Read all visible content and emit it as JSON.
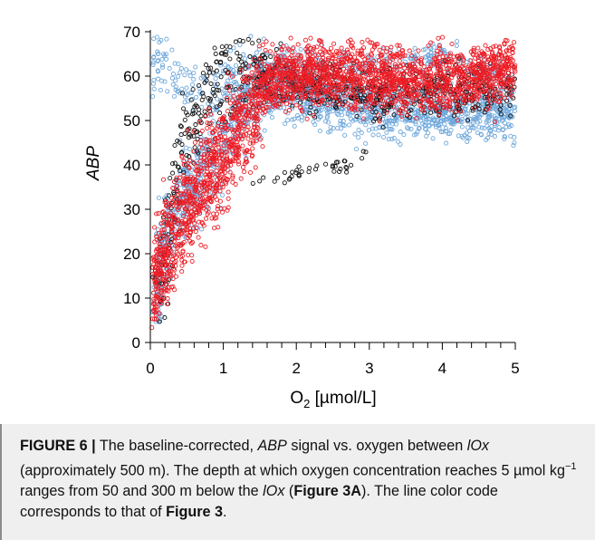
{
  "chart_data": {
    "type": "scatter",
    "xlabel_main": "O",
    "xlabel_sub": "2",
    "xlabel_unit": " [µmol/L]",
    "ylabel": "ABP",
    "xlim": [
      0,
      5
    ],
    "ylim": [
      0,
      70
    ],
    "x_ticks": [
      0,
      1,
      2,
      3,
      4,
      5
    ],
    "y_ticks": [
      0,
      10,
      20,
      30,
      40,
      50,
      60,
      70
    ],
    "grid": false,
    "colors": {
      "blue": "#6fa8dc",
      "black": "#111111",
      "red": "#ee1c24"
    },
    "series": [
      {
        "color_key": "blue",
        "trend": [
          [
            0.05,
            6
          ],
          [
            0.1,
            14
          ],
          [
            0.2,
            22
          ],
          [
            0.35,
            28
          ],
          [
            0.5,
            33
          ],
          [
            0.7,
            38
          ],
          [
            0.9,
            43
          ],
          [
            1.1,
            49
          ],
          [
            1.3,
            54
          ],
          [
            1.6,
            57
          ],
          [
            2.0,
            57
          ],
          [
            2.5,
            54
          ],
          [
            3.0,
            53
          ],
          [
            3.5,
            53
          ],
          [
            4.0,
            52
          ],
          [
            4.5,
            52
          ],
          [
            5.0,
            52
          ]
        ],
        "upper_trend": [
          [
            0.05,
            62
          ],
          [
            0.2,
            63
          ],
          [
            0.4,
            58
          ],
          [
            0.6,
            57
          ],
          [
            0.8,
            58
          ],
          [
            1.0,
            60
          ],
          [
            1.3,
            62
          ],
          [
            1.6,
            63
          ],
          [
            2.0,
            63
          ],
          [
            2.5,
            62
          ],
          [
            3.0,
            62
          ],
          [
            3.5,
            63
          ],
          [
            4.0,
            64
          ],
          [
            4.5,
            62
          ],
          [
            5.0,
            60
          ]
        ]
      },
      {
        "color_key": "black",
        "trend": [
          [
            0.15,
            10
          ],
          [
            0.2,
            16
          ],
          [
            0.25,
            24
          ],
          [
            0.3,
            32
          ],
          [
            0.4,
            40
          ],
          [
            0.5,
            46
          ],
          [
            0.7,
            52
          ],
          [
            0.9,
            58
          ],
          [
            1.1,
            61
          ],
          [
            1.3,
            62
          ],
          [
            1.6,
            60
          ],
          [
            2.0,
            58
          ],
          [
            2.5,
            57
          ],
          [
            3.0,
            56
          ],
          [
            3.5,
            56
          ],
          [
            4.0,
            57
          ],
          [
            4.5,
            57
          ],
          [
            5.0,
            57
          ]
        ],
        "side_arc": [
          [
            1.4,
            36
          ],
          [
            1.8,
            37
          ],
          [
            2.2,
            39
          ],
          [
            2.5,
            40
          ],
          [
            2.8,
            39
          ],
          [
            3.0,
            44
          ],
          [
            3.1,
            47
          ]
        ]
      },
      {
        "color_key": "red",
        "trend": [
          [
            0.05,
            10
          ],
          [
            0.1,
            14
          ],
          [
            0.2,
            20
          ],
          [
            0.35,
            26
          ],
          [
            0.5,
            31
          ],
          [
            0.7,
            36
          ],
          [
            0.9,
            40
          ],
          [
            1.1,
            44
          ],
          [
            1.3,
            50
          ],
          [
            1.5,
            56
          ],
          [
            1.7,
            60
          ],
          [
            2.0,
            60
          ],
          [
            2.5,
            61
          ],
          [
            3.0,
            60
          ],
          [
            3.5,
            59
          ],
          [
            4.0,
            59
          ],
          [
            4.5,
            60
          ],
          [
            5.0,
            62
          ]
        ]
      }
    ]
  },
  "caption": {
    "label": "FIGURE 6 |",
    "t1": " The baseline-corrected, ",
    "t2": "ABP",
    "t3": " signal vs. oxygen between ",
    "t4": "lOx",
    "t5": " (approximately 500 m). The depth at which oxygen concentration reaches 5 µmol kg",
    "t6": "−1",
    "t7": " ranges from 50 and 300 m below the ",
    "t8": "lOx",
    "t9": " (",
    "t10": "Figure 3A",
    "t11": "). The line color code corresponds to that of ",
    "t12": "Figure 3",
    "t13": "."
  }
}
